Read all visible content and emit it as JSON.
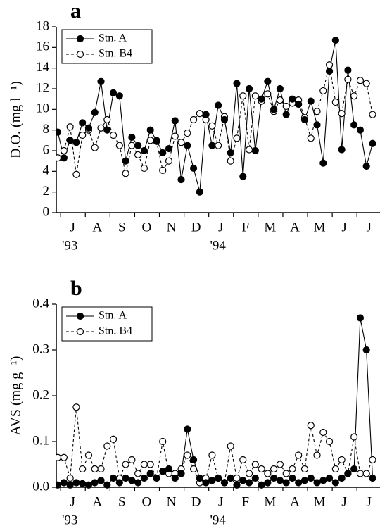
{
  "chart_data": [
    {
      "type": "line",
      "panel_label": "a",
      "ylabel": "D.O. (mg l⁻¹)",
      "x": [
        0.4,
        0.65,
        0.9,
        1.15,
        1.4,
        1.65,
        1.9,
        2.15,
        2.4,
        2.65,
        2.9,
        3.15,
        3.4,
        3.65,
        3.9,
        4.15,
        4.4,
        4.65,
        4.9,
        5.15,
        5.4,
        5.65,
        5.9,
        6.15,
        6.4,
        6.65,
        6.9,
        7.15,
        7.4,
        7.65,
        7.9,
        8.15,
        8.4,
        8.65,
        8.9,
        9.15,
        9.4,
        9.65,
        9.9,
        10.15,
        10.4,
        10.65,
        10.9,
        11.15,
        11.4,
        11.65,
        11.9,
        12.15,
        12.4,
        12.65,
        12.9,
        13.15
      ],
      "series": [
        {
          "name": "Stn. A",
          "color": "#000000",
          "marker_fill": true,
          "dashed": false,
          "values": [
            7.8,
            5.3,
            7.0,
            6.8,
            8.7,
            8.2,
            9.7,
            12.7,
            8.0,
            11.6,
            11.3,
            5.0,
            7.3,
            6.5,
            6.0,
            8.0,
            7.0,
            5.8,
            6.2,
            8.9,
            3.2,
            6.5,
            4.3,
            2.0,
            9.5,
            6.5,
            10.4,
            9.0,
            5.8,
            12.5,
            3.5,
            12.0,
            6.0,
            11.0,
            12.7,
            10.0,
            12.0,
            9.5,
            11.0,
            10.5,
            9.0,
            10.8,
            8.5,
            4.8,
            13.7,
            16.7,
            6.1,
            13.8,
            8.5,
            8.0,
            4.5,
            6.7
          ]
        },
        {
          "name": "Stn. B4",
          "color": "#000000",
          "marker_fill": false,
          "dashed": true,
          "values": [
            5.3,
            6.0,
            8.3,
            3.7,
            7.5,
            8.0,
            6.3,
            8.2,
            9.0,
            7.5,
            6.5,
            3.8,
            6.5,
            5.6,
            4.3,
            7.0,
            6.9,
            4.1,
            5.0,
            7.4,
            6.8,
            7.7,
            9.0,
            9.6,
            9.0,
            8.4,
            6.5,
            9.3,
            5.0,
            7.2,
            11.3,
            6.1,
            11.3,
            10.8,
            11.5,
            9.8,
            10.9,
            10.3,
            10.6,
            10.9,
            9.2,
            7.2,
            9.8,
            11.8,
            14.3,
            10.7,
            9.6,
            12.9,
            11.3,
            12.8,
            12.5,
            9.5
          ]
        }
      ],
      "xlim": [
        0.34,
        13.45
      ],
      "xticks": [
        {
          "value": 1,
          "label": "J"
        },
        {
          "value": 2,
          "label": "A"
        },
        {
          "value": 3,
          "label": "S"
        },
        {
          "value": 4,
          "label": "O"
        },
        {
          "value": 5,
          "label": "N"
        },
        {
          "value": 6,
          "label": "D"
        },
        {
          "value": 7,
          "label": "J"
        },
        {
          "value": 8,
          "label": "F"
        },
        {
          "value": 9,
          "label": "M"
        },
        {
          "value": 10,
          "label": "A"
        },
        {
          "value": 11,
          "label": "M"
        },
        {
          "value": 12,
          "label": "J"
        },
        {
          "value": 13,
          "label": "J"
        }
      ],
      "year_labels": [
        {
          "value": 1,
          "label": "'93"
        },
        {
          "value": 7,
          "label": "'94"
        }
      ],
      "ylim": [
        0,
        18
      ],
      "yticks": [
        0,
        2,
        4,
        6,
        8,
        10,
        12,
        14,
        16,
        18
      ],
      "legend": "upper left"
    },
    {
      "type": "line",
      "panel_label": "b",
      "ylabel": "AVS (mg g⁻¹)",
      "x": [
        0.4,
        0.65,
        0.9,
        1.15,
        1.4,
        1.65,
        1.9,
        2.15,
        2.4,
        2.65,
        2.9,
        3.15,
        3.4,
        3.65,
        3.9,
        4.15,
        4.4,
        4.65,
        4.9,
        5.15,
        5.4,
        5.65,
        5.9,
        6.15,
        6.4,
        6.65,
        6.9,
        7.15,
        7.4,
        7.65,
        7.9,
        8.15,
        8.4,
        8.65,
        8.9,
        9.15,
        9.4,
        9.65,
        9.9,
        10.15,
        10.4,
        10.65,
        10.9,
        11.15,
        11.4,
        11.65,
        11.9,
        12.15,
        12.4,
        12.65,
        12.9,
        13.15
      ],
      "series": [
        {
          "name": "Stn. A",
          "color": "#000000",
          "marker_fill": true,
          "dashed": false,
          "values": [
            0.005,
            0.01,
            0.005,
            0.01,
            0.008,
            0.005,
            0.01,
            0.015,
            0.005,
            0.02,
            0.01,
            0.02,
            0.015,
            0.01,
            0.02,
            0.03,
            0.02,
            0.035,
            0.04,
            0.02,
            0.03,
            0.127,
            0.06,
            0.02,
            0.01,
            0.015,
            0.02,
            0.01,
            0.02,
            0.005,
            0.015,
            0.01,
            0.02,
            0.005,
            0.01,
            0.02,
            0.015,
            0.01,
            0.02,
            0.01,
            0.015,
            0.02,
            0.01,
            0.015,
            0.02,
            0.01,
            0.02,
            0.03,
            0.04,
            0.37,
            0.3,
            0.02
          ]
        },
        {
          "name": "Stn. B4",
          "color": "#000000",
          "marker_fill": false,
          "dashed": true,
          "values": [
            0.065,
            0.065,
            0.02,
            0.175,
            0.04,
            0.07,
            0.04,
            0.04,
            0.09,
            0.105,
            0.02,
            0.05,
            0.06,
            0.03,
            0.05,
            0.05,
            0.02,
            0.1,
            0.03,
            0.03,
            0.04,
            0.07,
            0.04,
            0.01,
            0.02,
            0.07,
            0.02,
            0.01,
            0.09,
            0.02,
            0.06,
            0.03,
            0.05,
            0.04,
            0.03,
            0.04,
            0.05,
            0.03,
            0.04,
            0.07,
            0.04,
            0.135,
            0.07,
            0.12,
            0.1,
            0.04,
            0.06,
            0.03,
            0.11,
            0.03,
            0.03,
            0.06
          ]
        }
      ],
      "xlim": [
        0.34,
        13.45
      ],
      "xticks": [
        {
          "value": 1,
          "label": "J"
        },
        {
          "value": 2,
          "label": "A"
        },
        {
          "value": 3,
          "label": "S"
        },
        {
          "value": 4,
          "label": "O"
        },
        {
          "value": 5,
          "label": "N"
        },
        {
          "value": 6,
          "label": "D"
        },
        {
          "value": 7,
          "label": "J"
        },
        {
          "value": 8,
          "label": "F"
        },
        {
          "value": 9,
          "label": "M"
        },
        {
          "value": 10,
          "label": "A"
        },
        {
          "value": 11,
          "label": "M"
        },
        {
          "value": 12,
          "label": "J"
        },
        {
          "value": 13,
          "label": "J"
        }
      ],
      "year_labels": [
        {
          "value": 1,
          "label": "'93"
        },
        {
          "value": 7,
          "label": "'94"
        }
      ],
      "ylim": [
        0,
        0.4
      ],
      "yticks": [
        {
          "value": 0,
          "label": "0.0"
        },
        0.1,
        0.2,
        0.3,
        0.4
      ],
      "legend": "upper left"
    }
  ]
}
